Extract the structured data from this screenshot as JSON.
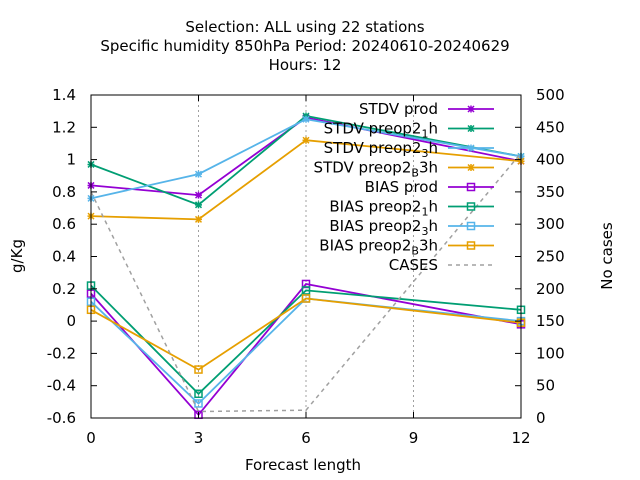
{
  "chart_data": {
    "type": "line",
    "title_lines": [
      "Selection: ALL using    22 stations",
      "Specific humidity 850hPa   Period: 20240610-20240629",
      "Hours:  12"
    ],
    "xlabel": "Forecast length",
    "ylabel": "g/Kg",
    "y2label": "No cases",
    "x": [
      0,
      3,
      6,
      9,
      12
    ],
    "xlim": [
      0,
      12
    ],
    "ylim": [
      -0.6,
      1.4
    ],
    "y2lim": [
      0,
      500
    ],
    "x_ticks": [
      "0",
      "3",
      "6",
      "9",
      "12"
    ],
    "y_ticks": [
      "-0.6",
      "-0.4",
      "-0.2",
      "0",
      "0.2",
      "0.4",
      "0.6",
      "0.8",
      "1",
      "1.2",
      "1.4"
    ],
    "y2_ticks": [
      "0",
      "50",
      "100",
      "150",
      "200",
      "250",
      "300",
      "350",
      "400",
      "450",
      "500"
    ],
    "grid": true,
    "legend_position": "top-right",
    "series": [
      {
        "name": "STDV prod",
        "sub": "",
        "after": "",
        "color": "#9400d3",
        "marker": "star",
        "axis": "y",
        "points": [
          [
            0,
            0.84
          ],
          [
            3,
            0.78
          ],
          [
            6,
            1.26
          ],
          [
            12,
            0.99
          ]
        ]
      },
      {
        "name": "STDV preop2",
        "sub": "1",
        "after": "h",
        "color": "#009e73",
        "marker": "star",
        "axis": "y",
        "points": [
          [
            0,
            0.97
          ],
          [
            3,
            0.72
          ],
          [
            6,
            1.27
          ],
          [
            12,
            1.02
          ]
        ]
      },
      {
        "name": "STDV preop2",
        "sub": "3",
        "after": "h",
        "color": "#56b4e9",
        "marker": "star",
        "axis": "y",
        "points": [
          [
            0,
            0.76
          ],
          [
            3,
            0.91
          ],
          [
            6,
            1.25
          ],
          [
            12,
            1.02
          ]
        ]
      },
      {
        "name": "STDV preop2",
        "sub": "B",
        "after": "3h",
        "color": "#e69f00",
        "marker": "star",
        "axis": "y",
        "points": [
          [
            0,
            0.65
          ],
          [
            3,
            0.63
          ],
          [
            6,
            1.12
          ],
          [
            12,
            0.99
          ]
        ]
      },
      {
        "name": "BIAS prod",
        "sub": "",
        "after": "",
        "color": "#9400d3",
        "marker": "square",
        "axis": "y",
        "points": [
          [
            0,
            0.17
          ],
          [
            3,
            -0.58
          ],
          [
            6,
            0.23
          ],
          [
            12,
            -0.02
          ]
        ]
      },
      {
        "name": "BIAS preop2",
        "sub": "1",
        "after": "h",
        "color": "#009e73",
        "marker": "square",
        "axis": "y",
        "points": [
          [
            0,
            0.22
          ],
          [
            3,
            -0.45
          ],
          [
            6,
            0.19
          ],
          [
            12,
            0.07
          ]
        ]
      },
      {
        "name": "BIAS preop2",
        "sub": "3",
        "after": "h",
        "color": "#56b4e9",
        "marker": "square",
        "axis": "y",
        "points": [
          [
            0,
            0.12
          ],
          [
            3,
            -0.51
          ],
          [
            6,
            0.14
          ],
          [
            12,
            0.0
          ]
        ]
      },
      {
        "name": "BIAS preop2",
        "sub": "B",
        "after": "3h",
        "color": "#e69f00",
        "marker": "square",
        "axis": "y",
        "points": [
          [
            0,
            0.07
          ],
          [
            3,
            -0.3
          ],
          [
            6,
            0.14
          ],
          [
            12,
            -0.01
          ]
        ]
      },
      {
        "name": "CASES",
        "sub": "",
        "after": "",
        "color": "#a0a0a0",
        "marker": "none",
        "dashed": true,
        "axis": "y2",
        "points": [
          [
            0,
            350
          ],
          [
            3,
            10
          ],
          [
            6,
            12
          ],
          [
            12,
            410
          ]
        ]
      }
    ]
  }
}
